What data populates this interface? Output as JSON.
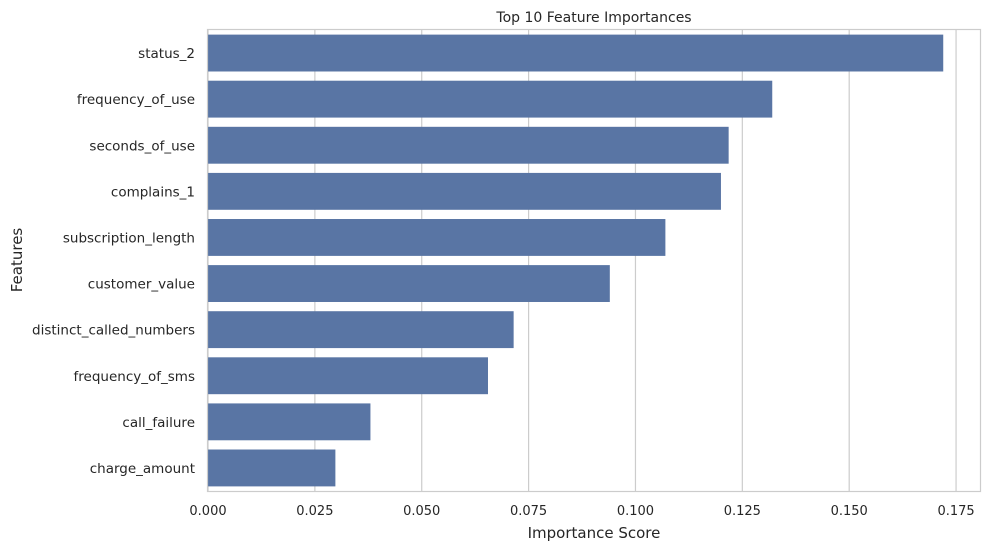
{
  "chart_data": {
    "type": "bar",
    "orientation": "horizontal",
    "title": "Top 10 Feature Importances",
    "xlabel": "Importance Score",
    "ylabel": "Features",
    "categories": [
      "status_2",
      "frequency_of_use",
      "seconds_of_use",
      "complains_1",
      "subscription_length",
      "customer_value",
      "distinct_called_numbers",
      "frequency_of_sms",
      "call_failure",
      "charge_amount"
    ],
    "values": [
      0.172,
      0.132,
      0.1218,
      0.12,
      0.107,
      0.094,
      0.0715,
      0.0655,
      0.038,
      0.0298
    ],
    "xticks": [
      "0.000",
      "0.025",
      "0.050",
      "0.075",
      "0.100",
      "0.125",
      "0.150",
      "0.175"
    ],
    "xtick_values": [
      0,
      0.025,
      0.05,
      0.075,
      0.1,
      0.125,
      0.15,
      0.175
    ],
    "xlim": [
      0,
      0.1806
    ],
    "grid": true,
    "bar_color": "#5975a4",
    "grid_color": "#cccccc",
    "axes_edge_color": "#cccccc"
  }
}
